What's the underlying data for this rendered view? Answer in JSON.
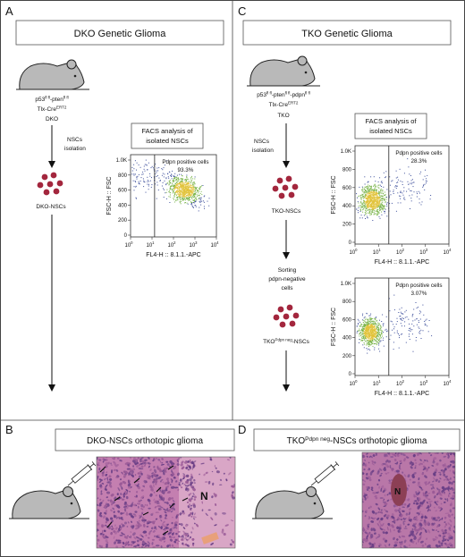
{
  "panels": {
    "A": {
      "letter": "A",
      "title": "DKO Genetic Glioma",
      "genotype_line1_parts": [
        "p53",
        "fl fl",
        "-pten",
        "fl fl"
      ],
      "genotype_line2_parts": [
        "Tlx-Cre",
        "ERT2"
      ],
      "genotype_name": "DKO",
      "arrow_label_1": "NSCs",
      "arrow_label_2": "isolation",
      "cells_label": "DKO-NSCs"
    },
    "B": {
      "letter": "B",
      "title": "DKO-NSCs orthotopic glioma",
      "histology_label": "N"
    },
    "C": {
      "letter": "C",
      "title": "TKO Genetic Glioma",
      "genotype_line1_parts": [
        "p53",
        "fl fl",
        "-pten",
        "fl fl",
        "-pdpn",
        "fl fl"
      ],
      "genotype_line2_parts": [
        "Tlx-Cre",
        "ERT2"
      ],
      "genotype_name": "TKO",
      "arrow_label_1": "NSCs",
      "arrow_label_2": "isolation",
      "cells_label": "TKO-NSCs",
      "sorting_1": "Sorting",
      "sorting_2": "pdpn-negative",
      "sorting_3": "cells",
      "sorted_cells_label_parts": [
        "TKO",
        "Pdpn neg",
        "-NSCs"
      ]
    },
    "D": {
      "letter": "D",
      "title_parts": [
        "TKO",
        "Pdpn neg",
        "-NSCs orthotopic glioma"
      ],
      "histology_label": "N"
    }
  },
  "facs_box_A": {
    "line1": "FACS analysis of",
    "line2": "isolated NSCs"
  },
  "facs_box_C": {
    "line1": "FACS analysis of",
    "line2": "isolated NSCs"
  },
  "plots": [
    {
      "id": "dko",
      "gate_label": "Pdpn positive cells",
      "gate_percent": "93.3%",
      "xlabel": "FL4-H :: 8.1.1.-APC",
      "ylabel": "FSC-H :: FSC",
      "xticks": [
        "10",
        "0",
        "10",
        "1",
        "10",
        "2",
        "10",
        "3",
        "10",
        "4"
      ],
      "yticks": [
        "1.0K",
        "800",
        "600",
        "400",
        "200",
        "0"
      ]
    },
    {
      "id": "tko",
      "gate_label": "Pdpn positive cells",
      "gate_percent": "28.3%",
      "xlabel": "FL4-H :: 8.1.1.-APC",
      "ylabel": "FSC-H :: FSC",
      "xticks": [
        "10",
        "0",
        "10",
        "1",
        "10",
        "2",
        "10",
        "3",
        "10",
        "4"
      ],
      "yticks": [
        "1.0K",
        "800",
        "600",
        "400",
        "200",
        "0"
      ]
    },
    {
      "id": "tko-sorted",
      "gate_label": "Pdpn positive cells",
      "gate_percent": "3.07%",
      "xlabel": "FL4-H :: 8.1.1.-APC",
      "ylabel": "FSC-H :: FSC",
      "xticks": [
        "10",
        "0",
        "10",
        "1",
        "10",
        "2",
        "10",
        "3",
        "10",
        "4"
      ],
      "yticks": [
        "1.0K",
        "800",
        "600",
        "400",
        "200",
        "0"
      ]
    }
  ],
  "colors": {
    "mouse": "#b9b9b9",
    "cell": "#a3263d",
    "box_border": "#555555",
    "histology_bg": "#c47fb0",
    "histology_dark": "#6a3f86",
    "dot_blue": "#3d4f9c",
    "dot_green": "#79b44a",
    "dot_yellow": "#e2c33a"
  }
}
